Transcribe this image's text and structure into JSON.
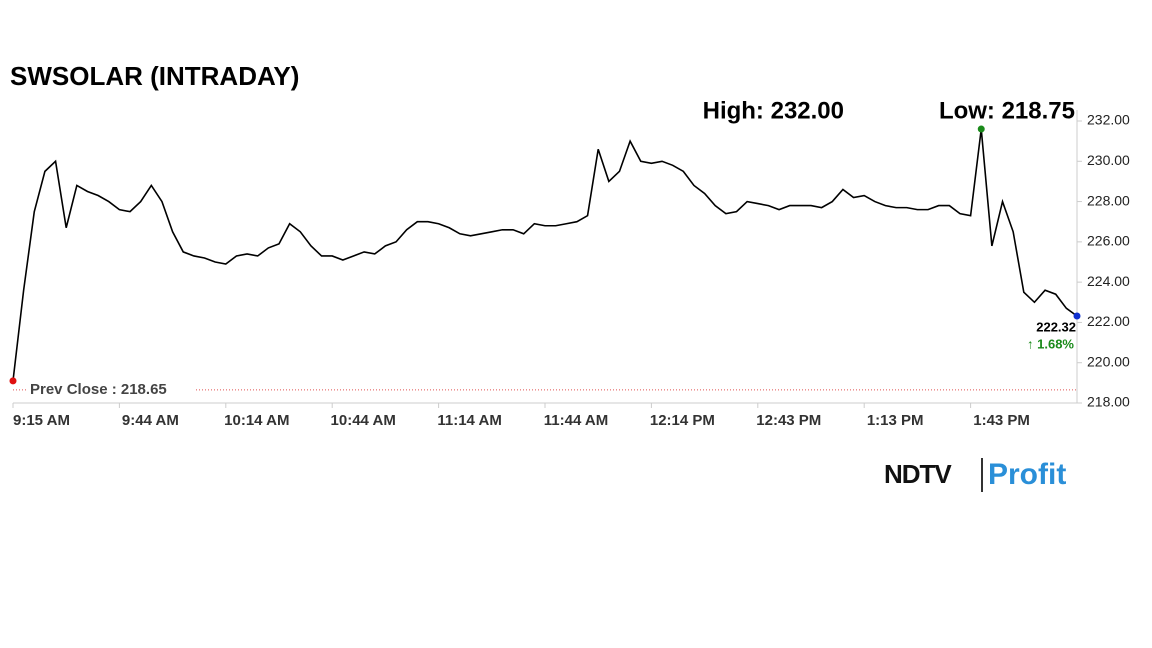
{
  "chart_data": {
    "type": "line",
    "title": "SWSOLAR (INTRADAY)",
    "high_label": "High: 232.00",
    "low_label": "Low: 218.75",
    "prev_close_label": "Prev Close : 218.65",
    "prev_close": 218.65,
    "last_value_label": "222.32",
    "change_label": "↑ 1.68%",
    "brand": [
      "NDTV",
      "Profit"
    ],
    "categories": [
      "9:15 AM",
      null,
      null,
      null,
      null,
      null,
      null,
      null,
      null,
      null,
      "9:44 AM",
      null,
      null,
      null,
      null,
      null,
      null,
      null,
      null,
      null,
      "10:14 AM",
      null,
      null,
      null,
      null,
      null,
      null,
      null,
      null,
      null,
      "10:44 AM",
      null,
      null,
      null,
      null,
      null,
      null,
      null,
      null,
      null,
      "11:14 AM",
      null,
      null,
      null,
      null,
      null,
      null,
      null,
      null,
      null,
      "11:44 AM",
      null,
      null,
      null,
      null,
      null,
      null,
      null,
      null,
      null,
      "12:14 PM",
      null,
      null,
      null,
      null,
      null,
      null,
      null,
      null,
      null,
      "12:43 PM",
      null,
      null,
      null,
      null,
      null,
      null,
      null,
      null,
      null,
      "1:13 PM",
      null,
      null,
      null,
      null,
      null,
      null,
      null,
      null,
      null,
      "1:43 PM",
      null,
      null,
      null,
      null,
      null,
      null,
      null,
      null,
      null,
      null
    ],
    "values": [
      219.1,
      223.6,
      227.5,
      229.5,
      230.0,
      226.7,
      228.8,
      228.5,
      228.3,
      228.0,
      227.6,
      227.5,
      228.0,
      228.8,
      228.0,
      226.5,
      225.5,
      225.3,
      225.2,
      225.0,
      224.9,
      225.3,
      225.4,
      225.3,
      225.7,
      225.9,
      226.9,
      226.5,
      225.8,
      225.3,
      225.3,
      225.1,
      225.3,
      225.5,
      225.4,
      225.8,
      226.0,
      226.6,
      227.0,
      227.0,
      226.9,
      226.7,
      226.4,
      226.3,
      226.4,
      226.5,
      226.6,
      226.6,
      226.4,
      226.9,
      226.8,
      226.8,
      226.9,
      227.0,
      227.3,
      230.6,
      229.0,
      229.5,
      231.0,
      230.0,
      229.9,
      230.0,
      229.8,
      229.5,
      228.8,
      228.4,
      227.8,
      227.4,
      227.5,
      228.0,
      227.9,
      227.8,
      227.6,
      227.8,
      227.8,
      227.8,
      227.7,
      228.0,
      228.6,
      228.2,
      228.3,
      228.0,
      227.8,
      227.7,
      227.7,
      227.6,
      227.6,
      227.8,
      227.8,
      227.4,
      227.3,
      231.6,
      225.8,
      228.0,
      226.5,
      223.5,
      223.0,
      223.6,
      223.4,
      222.7,
      222.32
    ],
    "color": "#000000",
    "ylim": [
      218,
      232
    ],
    "yticks": [
      {
        "value": 218,
        "label": "218.00"
      },
      {
        "value": 220,
        "label": "220.00"
      },
      {
        "value": 222,
        "label": "222.00"
      },
      {
        "value": 224,
        "label": "224.00"
      },
      {
        "value": 226,
        "label": "226.00"
      },
      {
        "value": 228,
        "label": "228.00"
      },
      {
        "value": 230,
        "label": "230.00"
      },
      {
        "value": 232,
        "label": "232.00"
      }
    ]
  }
}
